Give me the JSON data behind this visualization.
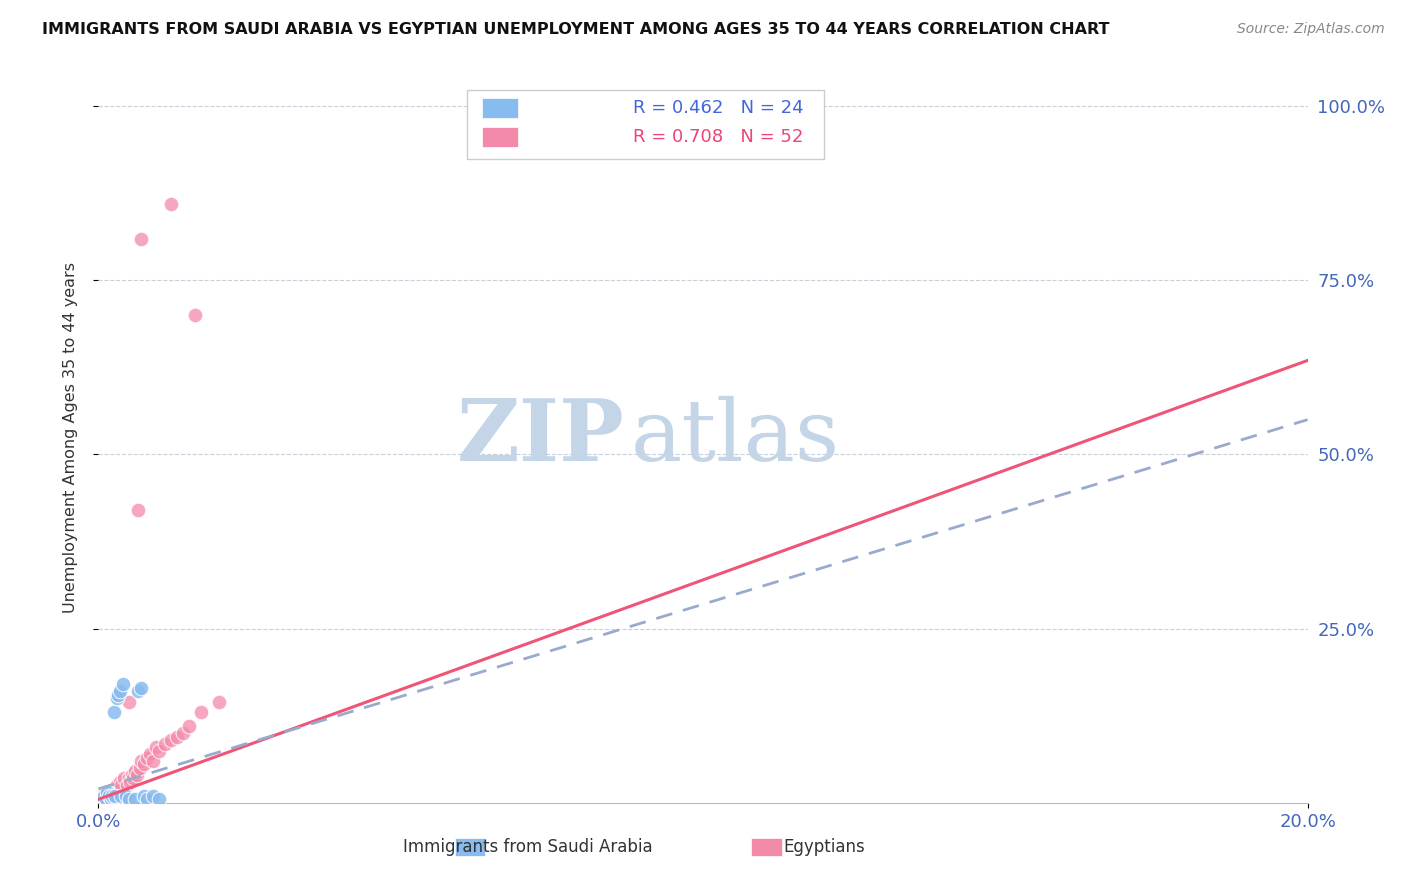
{
  "title": "IMMIGRANTS FROM SAUDI ARABIA VS EGYPTIAN UNEMPLOYMENT AMONG AGES 35 TO 44 YEARS CORRELATION CHART",
  "source": "Source: ZipAtlas.com",
  "ylabel": "Unemployment Among Ages 35 to 44 years",
  "legend_label1": "Immigrants from Saudi Arabia",
  "legend_label2": "Egyptians",
  "R1": 0.462,
  "N1": 24,
  "R2": 0.708,
  "N2": 52,
  "color1": "#88BBEE",
  "color2": "#F48AAA",
  "trendline1_color": "#99AACC",
  "trendline2_color": "#EE5577",
  "blue_scatter_x": [
    0.0005,
    0.0008,
    0.001,
    0.0012,
    0.0015,
    0.0018,
    0.002,
    0.0022,
    0.0025,
    0.0028,
    0.003,
    0.0033,
    0.0035,
    0.0038,
    0.004,
    0.0045,
    0.005,
    0.006,
    0.0065,
    0.007,
    0.0075,
    0.008,
    0.009,
    0.01
  ],
  "blue_scatter_y": [
    0.005,
    0.008,
    0.01,
    0.005,
    0.015,
    0.01,
    0.005,
    0.01,
    0.13,
    0.01,
    0.15,
    0.155,
    0.16,
    0.01,
    0.17,
    0.01,
    0.005,
    0.005,
    0.16,
    0.165,
    0.01,
    0.005,
    0.01,
    0.005
  ],
  "pink_scatter_x": [
    0.0003,
    0.0005,
    0.0007,
    0.0008,
    0.001,
    0.0012,
    0.0013,
    0.0015,
    0.0017,
    0.0018,
    0.002,
    0.0022,
    0.0023,
    0.0025,
    0.0027,
    0.0028,
    0.003,
    0.0032,
    0.0033,
    0.0035,
    0.0037,
    0.0038,
    0.004,
    0.0042,
    0.0045,
    0.0048,
    0.005,
    0.0052,
    0.0055,
    0.0057,
    0.006,
    0.0063,
    0.0065,
    0.0068,
    0.007,
    0.0075,
    0.008,
    0.0085,
    0.009,
    0.0095,
    0.01,
    0.011,
    0.012,
    0.013,
    0.014,
    0.015,
    0.017,
    0.02,
    0.005,
    0.007,
    0.012,
    0.016
  ],
  "pink_scatter_y": [
    0.005,
    0.008,
    0.01,
    0.005,
    0.012,
    0.008,
    0.01,
    0.015,
    0.01,
    0.012,
    0.01,
    0.015,
    0.005,
    0.02,
    0.015,
    0.01,
    0.025,
    0.02,
    0.015,
    0.03,
    0.02,
    0.025,
    0.005,
    0.035,
    0.01,
    0.025,
    0.035,
    0.03,
    0.04,
    0.035,
    0.045,
    0.04,
    0.42,
    0.05,
    0.06,
    0.055,
    0.065,
    0.07,
    0.06,
    0.08,
    0.075,
    0.085,
    0.09,
    0.095,
    0.1,
    0.11,
    0.13,
    0.145,
    0.145,
    0.81,
    0.86,
    0.7
  ],
  "trendline1_x": [
    0.0,
    0.2
  ],
  "trendline1_y": [
    0.02,
    0.55
  ],
  "trendline2_x": [
    0.0,
    0.2
  ],
  "trendline2_y": [
    0.005,
    0.635
  ],
  "xmin": 0.0,
  "xmax": 0.2,
  "ymin": 0.0,
  "ymax": 1.05,
  "watermark_zip": "ZIP",
  "watermark_atlas": "atlas",
  "watermark_color": "#C5D5E8",
  "background_color": "#FFFFFF"
}
